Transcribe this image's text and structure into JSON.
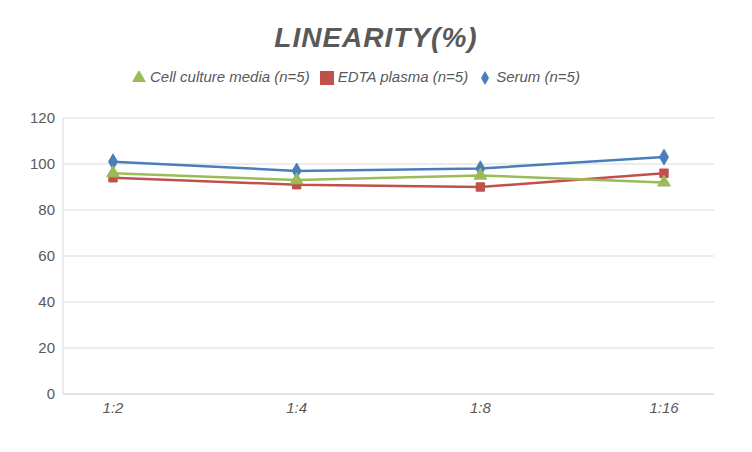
{
  "chart_data": {
    "type": "line",
    "title": "LINEARITY(%)",
    "categories": [
      "1:2",
      "1:4",
      "1:8",
      "1:16"
    ],
    "series": [
      {
        "name": "Serum (n=5)",
        "color": "#4a7ebb",
        "marker": "diamond",
        "values": [
          101,
          97,
          98,
          103
        ]
      },
      {
        "name": "EDTA plasma (n=5)",
        "color": "#c0504d",
        "marker": "square",
        "values": [
          94,
          91,
          90,
          96
        ]
      },
      {
        "name": "Cell culture media (n=5)",
        "color": "#9bbb59",
        "marker": "triangle",
        "values": [
          96,
          93,
          95,
          92
        ]
      }
    ],
    "ylim": [
      0,
      120
    ],
    "yticks": [
      0,
      20,
      40,
      60,
      80,
      100,
      120
    ],
    "grid": true,
    "legend": "top"
  }
}
